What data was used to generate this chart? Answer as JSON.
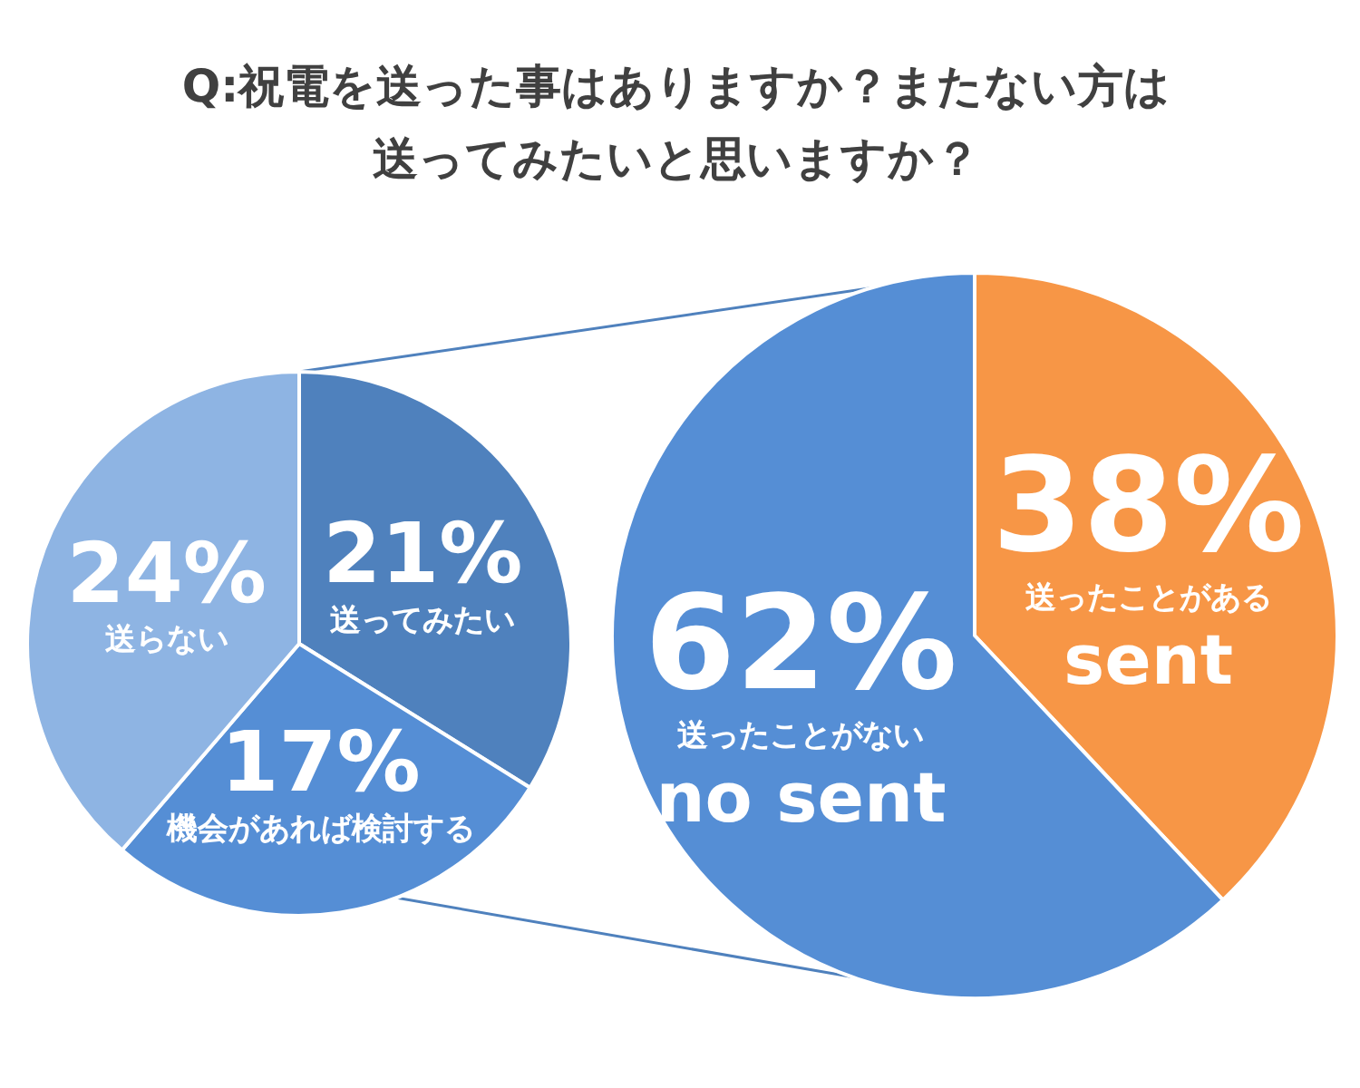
{
  "chart_data": [
    {
      "type": "pie",
      "title": "Q:祝電を送った事はありますか？またない方は送ってみたいと思いますか？",
      "categories": [
        "送ってみたい",
        "機会があれば検討する",
        "送らない"
      ],
      "values": [
        21,
        17,
        24
      ],
      "value_labels": [
        "21%",
        "17%",
        "24%"
      ],
      "colors": [
        "#4f81bd",
        "#558ed5",
        "#8eb4e3"
      ]
    },
    {
      "type": "pie",
      "categories": [
        "送ったことがある\nsent",
        "送ったことがない\nno sent"
      ],
      "values": [
        38,
        62
      ],
      "value_labels": [
        "38%",
        "62%"
      ],
      "colors": [
        "#f79646",
        "#558ed5"
      ]
    }
  ]
}
